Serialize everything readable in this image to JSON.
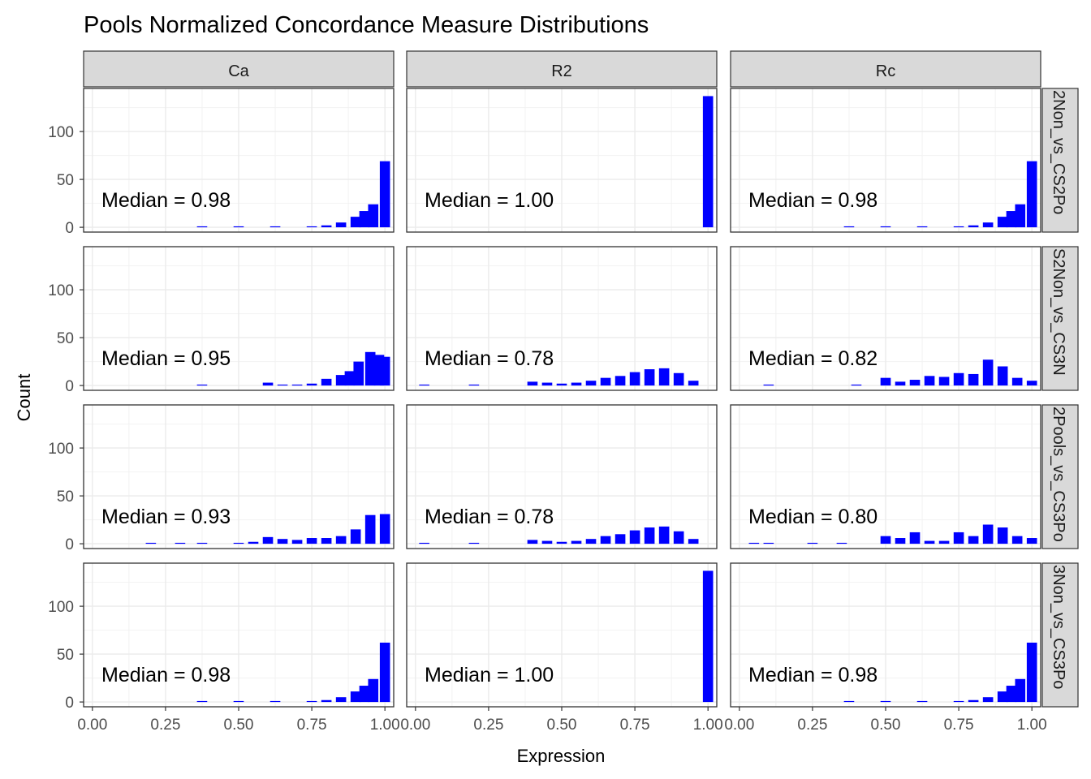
{
  "chart_data": {
    "type": "histogram",
    "title": "Pools Normalized Concordance Measure Distributions",
    "xlabel": "Expression",
    "ylabel": "Count",
    "xlim": [
      -0.03,
      1.03
    ],
    "ylim": [
      -5,
      145
    ],
    "x_ticks": [
      0,
      0.25,
      0.5,
      0.75,
      1.0
    ],
    "x_tick_labels": [
      "0.00",
      "0.25",
      "0.50",
      "0.75",
      "1.00"
    ],
    "y_ticks": [
      0,
      50,
      100
    ],
    "y_tick_labels": [
      "0",
      "50",
      "100"
    ],
    "grid": true,
    "bar_color": "#0000ff",
    "strip_fill": "#d9d9d9",
    "columns": [
      "Ca",
      "R2",
      "Rc"
    ],
    "rows": [
      "2Non_vs_CS2Po",
      "S2Non_vs_CS3N",
      "2Pools_vs_CS3Po",
      "3Non_vs_CS3Po"
    ],
    "panels": [
      {
        "row": 0,
        "col": 0,
        "median_label": "Median = 0.98",
        "bins": [
          [
            0.375,
            1
          ],
          [
            0.5,
            1
          ],
          [
            0.625,
            1
          ],
          [
            0.75,
            1
          ],
          [
            0.8,
            2
          ],
          [
            0.85,
            5
          ],
          [
            0.9,
            11
          ],
          [
            0.93,
            17
          ],
          [
            0.96,
            24
          ],
          [
            1.0,
            69
          ]
        ]
      },
      {
        "row": 0,
        "col": 1,
        "median_label": "Median = 1.00",
        "bins": [
          [
            1.0,
            137
          ]
        ]
      },
      {
        "row": 0,
        "col": 2,
        "median_label": "Median = 0.98",
        "bins": [
          [
            0.375,
            1
          ],
          [
            0.5,
            1
          ],
          [
            0.625,
            1
          ],
          [
            0.75,
            1
          ],
          [
            0.8,
            2
          ],
          [
            0.85,
            5
          ],
          [
            0.9,
            11
          ],
          [
            0.93,
            17
          ],
          [
            0.96,
            24
          ],
          [
            1.0,
            69
          ]
        ]
      },
      {
        "row": 1,
        "col": 0,
        "median_label": "Median = 0.95",
        "bins": [
          [
            0.375,
            1
          ],
          [
            0.6,
            3
          ],
          [
            0.65,
            1
          ],
          [
            0.7,
            1
          ],
          [
            0.75,
            2
          ],
          [
            0.8,
            7
          ],
          [
            0.85,
            11
          ],
          [
            0.88,
            15
          ],
          [
            0.91,
            25
          ],
          [
            0.95,
            35
          ],
          [
            0.98,
            32
          ],
          [
            1.0,
            30
          ]
        ]
      },
      {
        "row": 1,
        "col": 1,
        "median_label": "Median = 0.78",
        "bins": [
          [
            0.03,
            1
          ],
          [
            0.2,
            1
          ],
          [
            0.4,
            4
          ],
          [
            0.45,
            3
          ],
          [
            0.5,
            2
          ],
          [
            0.55,
            3
          ],
          [
            0.6,
            5
          ],
          [
            0.65,
            8
          ],
          [
            0.7,
            10
          ],
          [
            0.75,
            14
          ],
          [
            0.8,
            17
          ],
          [
            0.85,
            18
          ],
          [
            0.9,
            13
          ],
          [
            0.95,
            5
          ]
        ]
      },
      {
        "row": 1,
        "col": 2,
        "median_label": "Median = 0.82",
        "bins": [
          [
            0.1,
            1
          ],
          [
            0.4,
            1
          ],
          [
            0.5,
            8
          ],
          [
            0.55,
            4
          ],
          [
            0.6,
            6
          ],
          [
            0.65,
            10
          ],
          [
            0.7,
            9
          ],
          [
            0.75,
            13
          ],
          [
            0.8,
            12
          ],
          [
            0.85,
            27
          ],
          [
            0.9,
            20
          ],
          [
            0.95,
            8
          ],
          [
            1.0,
            5
          ]
        ]
      },
      {
        "row": 2,
        "col": 0,
        "median_label": "Median = 0.93",
        "bins": [
          [
            0.2,
            1
          ],
          [
            0.3,
            1
          ],
          [
            0.375,
            1
          ],
          [
            0.5,
            1
          ],
          [
            0.55,
            2
          ],
          [
            0.6,
            7
          ],
          [
            0.65,
            5
          ],
          [
            0.7,
            4
          ],
          [
            0.75,
            6
          ],
          [
            0.8,
            6
          ],
          [
            0.85,
            8
          ],
          [
            0.9,
            15
          ],
          [
            0.95,
            30
          ],
          [
            1.0,
            31
          ]
        ]
      },
      {
        "row": 2,
        "col": 1,
        "median_label": "Median = 0.78",
        "bins": [
          [
            0.03,
            1
          ],
          [
            0.2,
            1
          ],
          [
            0.4,
            4
          ],
          [
            0.45,
            3
          ],
          [
            0.5,
            2
          ],
          [
            0.55,
            3
          ],
          [
            0.6,
            5
          ],
          [
            0.65,
            8
          ],
          [
            0.7,
            10
          ],
          [
            0.75,
            14
          ],
          [
            0.8,
            17
          ],
          [
            0.85,
            18
          ],
          [
            0.9,
            13
          ],
          [
            0.95,
            5
          ]
        ]
      },
      {
        "row": 2,
        "col": 2,
        "median_label": "Median = 0.80",
        "bins": [
          [
            0.05,
            1
          ],
          [
            0.1,
            1
          ],
          [
            0.25,
            1
          ],
          [
            0.35,
            1
          ],
          [
            0.5,
            8
          ],
          [
            0.55,
            6
          ],
          [
            0.6,
            12
          ],
          [
            0.65,
            3
          ],
          [
            0.7,
            3
          ],
          [
            0.75,
            12
          ],
          [
            0.8,
            8
          ],
          [
            0.85,
            20
          ],
          [
            0.9,
            17
          ],
          [
            0.95,
            8
          ],
          [
            1.0,
            6
          ]
        ]
      },
      {
        "row": 3,
        "col": 0,
        "median_label": "Median = 0.98",
        "bins": [
          [
            0.375,
            1
          ],
          [
            0.5,
            1
          ],
          [
            0.625,
            1
          ],
          [
            0.75,
            1
          ],
          [
            0.8,
            2
          ],
          [
            0.85,
            5
          ],
          [
            0.9,
            11
          ],
          [
            0.93,
            17
          ],
          [
            0.96,
            24
          ],
          [
            1.0,
            62
          ]
        ]
      },
      {
        "row": 3,
        "col": 1,
        "median_label": "Median = 1.00",
        "bins": [
          [
            1.0,
            137
          ]
        ]
      },
      {
        "row": 3,
        "col": 2,
        "median_label": "Median = 0.98",
        "bins": [
          [
            0.375,
            1
          ],
          [
            0.5,
            1
          ],
          [
            0.625,
            1
          ],
          [
            0.75,
            1
          ],
          [
            0.8,
            2
          ],
          [
            0.85,
            5
          ],
          [
            0.9,
            11
          ],
          [
            0.93,
            17
          ],
          [
            0.96,
            24
          ],
          [
            1.0,
            62
          ]
        ]
      }
    ]
  }
}
